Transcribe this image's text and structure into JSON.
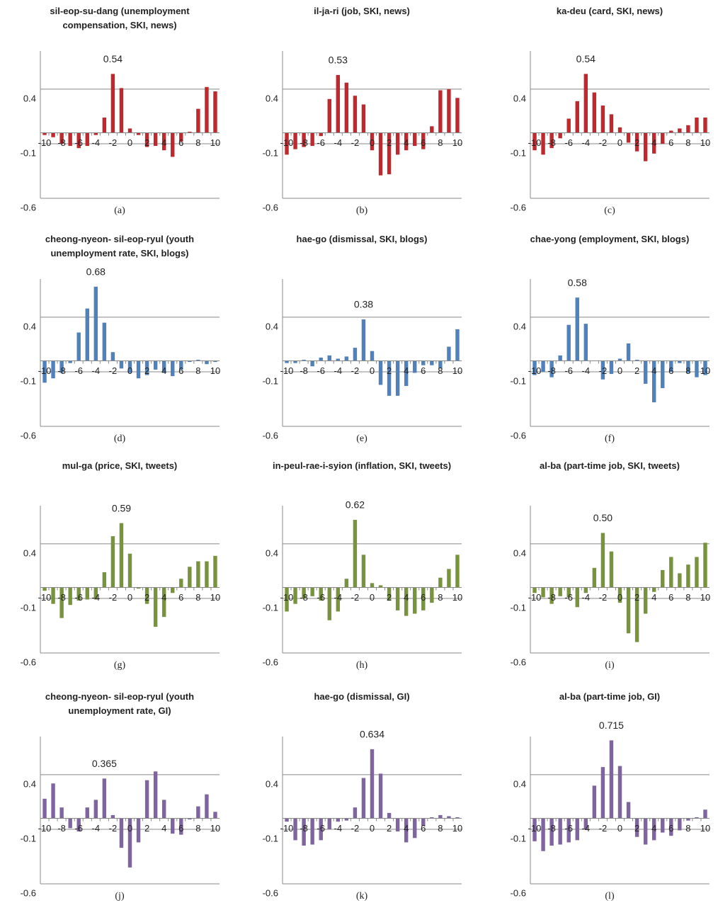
{
  "chart_data": [
    {
      "type": "bar",
      "title": "sil-eop-su-dang (unemployment compensation, SKI, news)",
      "caption": "(a)",
      "color": "#c0282d",
      "categories": [
        -10,
        null,
        -8,
        null,
        -6,
        null,
        -4,
        null,
        -2,
        null,
        0,
        null,
        2,
        null,
        4,
        null,
        6,
        null,
        8,
        null,
        10
      ],
      "values": [
        -0.02,
        -0.04,
        -0.1,
        -0.12,
        -0.14,
        -0.12,
        -0.02,
        0.14,
        0.54,
        0.41,
        0.04,
        -0.02,
        -0.13,
        -0.12,
        -0.16,
        -0.22,
        -0.08,
        0.01,
        0.22,
        0.42,
        0.38
      ],
      "value_labels": [
        null,
        null,
        null,
        null,
        null,
        null,
        null,
        null,
        "0.54",
        null,
        null,
        null,
        null,
        null,
        null,
        null,
        null,
        null,
        null,
        null,
        null
      ],
      "ylim": [
        -0.6,
        0.75
      ],
      "yticks": [
        -0.6,
        -0.1,
        0.4
      ],
      "grid": true
    },
    {
      "type": "bar",
      "title": "il-ja-ri (job, SKI, news)",
      "caption": "(b)",
      "color": "#c0282d",
      "categories": [
        -10,
        null,
        -8,
        null,
        -6,
        null,
        -4,
        null,
        -2,
        null,
        0,
        null,
        2,
        null,
        4,
        null,
        6,
        null,
        8,
        null,
        10
      ],
      "values": [
        -0.2,
        -0.15,
        -0.13,
        -0.12,
        -0.03,
        0.31,
        0.53,
        0.46,
        0.34,
        0.26,
        -0.16,
        -0.39,
        -0.38,
        -0.2,
        -0.16,
        -0.12,
        -0.15,
        0.06,
        0.39,
        0.4,
        0.32
      ],
      "value_labels": [
        null,
        null,
        null,
        null,
        null,
        null,
        "0.53",
        null,
        null,
        null,
        null,
        null,
        null,
        null,
        null,
        null,
        null,
        null,
        null,
        null,
        null
      ],
      "ylim": [
        -0.6,
        0.75
      ],
      "yticks": [
        -0.6,
        -0.1,
        0.4
      ],
      "grid": true
    },
    {
      "type": "bar",
      "title": "ka-deu (card, SKI, news)",
      "caption": "(c)",
      "color": "#c0282d",
      "categories": [
        -10,
        null,
        -8,
        null,
        -6,
        null,
        -4,
        null,
        -2,
        null,
        0,
        null,
        2,
        null,
        4,
        null,
        6,
        null,
        8,
        null,
        10
      ],
      "values": [
        -0.16,
        -0.2,
        -0.14,
        -0.05,
        0.13,
        0.29,
        0.54,
        0.37,
        0.25,
        0.17,
        0.05,
        -0.09,
        -0.17,
        -0.26,
        -0.19,
        -0.1,
        0.02,
        0.04,
        0.07,
        0.14,
        0.14
      ],
      "value_labels": [
        null,
        null,
        null,
        null,
        null,
        null,
        "0.54",
        null,
        null,
        null,
        null,
        null,
        null,
        null,
        null,
        null,
        null,
        null,
        null,
        null,
        null
      ],
      "ylim": [
        -0.6,
        0.75
      ],
      "yticks": [
        -0.6,
        -0.1,
        0.4
      ],
      "grid": true
    },
    {
      "type": "bar",
      "title": "cheong-nyeon- sil-eop-ryul (youth unemployment rate, SKI, blogs)",
      "caption": "(d)",
      "color": "#4f81bd",
      "categories": [
        -10,
        null,
        -8,
        null,
        -6,
        null,
        -4,
        null,
        -2,
        null,
        0,
        null,
        2,
        null,
        4,
        null,
        6,
        null,
        8,
        null,
        10
      ],
      "values": [
        -0.2,
        -0.16,
        -0.11,
        -0.02,
        0.26,
        0.48,
        0.68,
        0.35,
        0.08,
        -0.07,
        -0.11,
        -0.16,
        -0.13,
        -0.08,
        -0.11,
        -0.14,
        -0.08,
        -0.01,
        0.01,
        -0.03,
        -0.01
      ],
      "value_labels": [
        null,
        null,
        null,
        null,
        null,
        null,
        "0.68",
        null,
        null,
        null,
        null,
        null,
        null,
        null,
        null,
        null,
        null,
        null,
        null,
        null,
        null
      ],
      "ylim": [
        -0.6,
        0.75
      ],
      "yticks": [
        -0.6,
        -0.1,
        0.4
      ],
      "grid": true
    },
    {
      "type": "bar",
      "title": "hae-go (dismissal, SKI, blogs)",
      "caption": "(e)",
      "color": "#4f81bd",
      "categories": [
        -10,
        null,
        -8,
        null,
        -6,
        null,
        -4,
        null,
        -2,
        null,
        0,
        null,
        2,
        null,
        4,
        null,
        6,
        null,
        8,
        null,
        10
      ],
      "values": [
        -0.02,
        -0.02,
        0.01,
        -0.05,
        0.03,
        0.05,
        0.02,
        0.04,
        0.12,
        0.38,
        0.09,
        -0.22,
        -0.32,
        -0.32,
        -0.23,
        -0.11,
        -0.04,
        -0.04,
        -0.07,
        0.13,
        0.29
      ],
      "value_labels": [
        null,
        null,
        null,
        null,
        null,
        null,
        null,
        null,
        null,
        "0.38",
        null,
        null,
        null,
        null,
        null,
        null,
        null,
        null,
        null,
        null,
        null
      ],
      "ylim": [
        -0.6,
        0.75
      ],
      "yticks": [
        -0.6,
        -0.1,
        0.4
      ],
      "grid": true
    },
    {
      "type": "bar",
      "title": "chae-yong (employment, SKI, blogs)",
      "caption": "(f)",
      "color": "#4f81bd",
      "categories": [
        -10,
        null,
        -8,
        null,
        -6,
        null,
        -4,
        null,
        -2,
        null,
        0,
        null,
        2,
        null,
        4,
        null,
        6,
        null,
        8,
        null,
        10
      ],
      "values": [
        -0.13,
        -0.1,
        -0.15,
        0.05,
        0.33,
        0.58,
        0.34,
        0,
        -0.17,
        -0.12,
        0.02,
        0.16,
        0.01,
        -0.21,
        -0.38,
        -0.25,
        -0.1,
        -0.02,
        -0.11,
        -0.15,
        -0.13
      ],
      "value_labels": [
        null,
        null,
        null,
        null,
        null,
        "0.58",
        null,
        null,
        null,
        null,
        null,
        null,
        null,
        null,
        null,
        null,
        null,
        null,
        null,
        null,
        null
      ],
      "ylim": [
        -0.6,
        0.75
      ],
      "yticks": [
        -0.6,
        -0.1,
        0.4
      ],
      "grid": true
    },
    {
      "type": "bar",
      "title": "mul-ga (price, SKI, tweets)",
      "caption": "(g)",
      "color": "#77933c",
      "categories": [
        -10,
        null,
        -8,
        null,
        -6,
        null,
        -4,
        null,
        -2,
        null,
        0,
        null,
        2,
        null,
        4,
        null,
        6,
        null,
        8,
        null,
        10
      ],
      "values": [
        -0.03,
        -0.15,
        -0.28,
        -0.16,
        -0.12,
        -0.11,
        -0.11,
        0.14,
        0.47,
        0.59,
        0.31,
        -0.01,
        -0.15,
        -0.36,
        -0.27,
        -0.05,
        0.08,
        0.19,
        0.24,
        0.24,
        0.29
      ],
      "value_labels": [
        null,
        null,
        null,
        null,
        null,
        null,
        null,
        null,
        null,
        "0.59",
        null,
        null,
        null,
        null,
        null,
        null,
        null,
        null,
        null,
        null,
        null
      ],
      "ylim": [
        -0.6,
        0.75
      ],
      "yticks": [
        -0.6,
        -0.1,
        0.4
      ],
      "grid": true
    },
    {
      "type": "bar",
      "title": "in-peul-rae-i-syion (inflation, SKI, tweets)",
      "caption": "(h)",
      "color": "#77933c",
      "categories": [
        -10,
        null,
        -8,
        null,
        -6,
        null,
        -4,
        null,
        -2,
        null,
        0,
        null,
        2,
        null,
        4,
        null,
        6,
        null,
        8,
        null,
        10
      ],
      "values": [
        -0.22,
        -0.15,
        -0.1,
        -0.08,
        -0.12,
        -0.3,
        -0.22,
        0.08,
        0.62,
        0.3,
        0.04,
        0.02,
        -0.12,
        -0.21,
        -0.26,
        -0.24,
        -0.21,
        -0.14,
        0.09,
        0.17,
        0.3
      ],
      "value_labels": [
        null,
        null,
        null,
        null,
        null,
        null,
        null,
        null,
        "0.62",
        null,
        null,
        null,
        null,
        null,
        null,
        null,
        null,
        null,
        null,
        null,
        null
      ],
      "ylim": [
        -0.6,
        0.75
      ],
      "yticks": [
        -0.6,
        -0.1,
        0.4
      ],
      "grid": true
    },
    {
      "type": "bar",
      "title": "al-ba (part-time job, SKI, tweets)",
      "caption": "(i)",
      "color": "#77933c",
      "categories": [
        -10,
        null,
        -8,
        null,
        -6,
        null,
        -4,
        null,
        -2,
        null,
        0,
        null,
        2,
        null,
        4,
        null,
        6,
        null,
        8,
        null,
        10
      ],
      "values": [
        -0.05,
        -0.09,
        -0.15,
        -0.08,
        -0.09,
        -0.18,
        -0.05,
        0.18,
        0.5,
        0.33,
        -0.14,
        -0.42,
        -0.5,
        -0.24,
        -0.04,
        0.16,
        0.28,
        0.13,
        0.21,
        0.28,
        0.41
      ],
      "value_labels": [
        null,
        null,
        null,
        null,
        null,
        null,
        null,
        null,
        "0.50",
        null,
        null,
        null,
        null,
        null,
        null,
        null,
        null,
        null,
        null,
        null,
        null
      ],
      "ylim": [
        -0.6,
        0.75
      ],
      "yticks": [
        -0.6,
        -0.1,
        0.4
      ],
      "grid": true
    },
    {
      "type": "bar",
      "title": "cheong-nyeon- sil-eop-ryul (youth unemployment rate, GI)",
      "caption": "(j)",
      "color": "#8064a2",
      "categories": [
        -10,
        null,
        -8,
        null,
        -6,
        null,
        -4,
        null,
        -2,
        null,
        0,
        null,
        2,
        null,
        4,
        null,
        6,
        null,
        8,
        null,
        10
      ],
      "values": [
        0.18,
        0.32,
        0.1,
        -0.09,
        -0.12,
        0.1,
        0.17,
        0.365,
        0.03,
        -0.27,
        -0.45,
        -0.22,
        0.35,
        0.43,
        0.17,
        -0.14,
        -0.15,
        -0.01,
        0.11,
        0.22,
        0.06
      ],
      "value_labels": [
        null,
        null,
        null,
        null,
        null,
        null,
        null,
        "0.365",
        null,
        null,
        null,
        null,
        null,
        null,
        null,
        null,
        null,
        null,
        null,
        null,
        null
      ],
      "ylim": [
        -0.6,
        0.75
      ],
      "yticks": [
        -0.6,
        -0.1,
        0.4
      ],
      "grid": true
    },
    {
      "type": "bar",
      "title": "hae-go (dismissal, GI)",
      "caption": "(k)",
      "color": "#8064a2",
      "categories": [
        -10,
        null,
        -8,
        null,
        -6,
        null,
        -4,
        null,
        -2,
        null,
        0,
        null,
        2,
        null,
        4,
        null,
        6,
        null,
        8,
        null,
        10
      ],
      "values": [
        -0.03,
        -0.2,
        -0.25,
        -0.24,
        -0.2,
        -0.1,
        -0.03,
        -0.02,
        0.1,
        0.37,
        0.634,
        0.41,
        0.05,
        -0.12,
        -0.22,
        -0.18,
        -0.07,
        0.01,
        0.03,
        0.02,
        0.01
      ],
      "value_labels": [
        null,
        null,
        null,
        null,
        null,
        null,
        null,
        null,
        null,
        null,
        "0.634",
        null,
        null,
        null,
        null,
        null,
        null,
        null,
        null,
        null,
        null
      ],
      "ylim": [
        -0.6,
        0.75
      ],
      "yticks": [
        -0.6,
        -0.1,
        0.4
      ],
      "grid": true
    },
    {
      "type": "bar",
      "title": "al-ba (part-time job, GI)",
      "caption": "(l)",
      "color": "#8064a2",
      "categories": [
        -10,
        null,
        -8,
        null,
        -6,
        null,
        -4,
        null,
        -2,
        null,
        0,
        null,
        2,
        null,
        4,
        null,
        6,
        null,
        8,
        null,
        10
      ],
      "values": [
        -0.21,
        -0.3,
        -0.25,
        -0.24,
        -0.22,
        -0.2,
        -0.1,
        0.3,
        0.47,
        0.715,
        0.48,
        0.15,
        -0.17,
        -0.24,
        -0.2,
        -0.13,
        -0.16,
        -0.11,
        -0.02,
        0.01,
        0.08
      ],
      "value_labels": [
        null,
        null,
        null,
        null,
        null,
        null,
        null,
        null,
        null,
        "0.715",
        null,
        null,
        null,
        null,
        null,
        null,
        null,
        null,
        null,
        null,
        null
      ],
      "ylim": [
        -0.6,
        0.75
      ],
      "yticks": [
        -0.6,
        -0.1,
        0.4
      ],
      "grid": true
    }
  ]
}
